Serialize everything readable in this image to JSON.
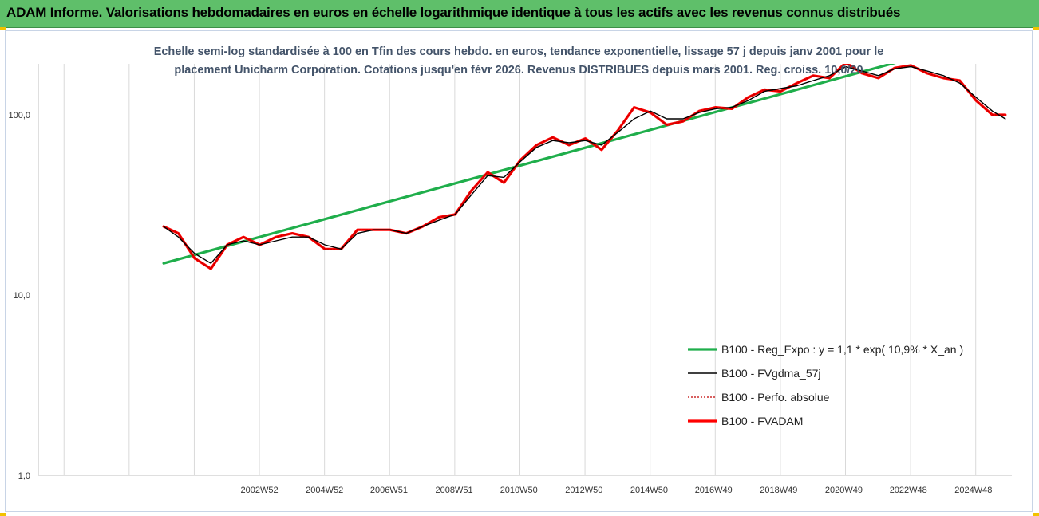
{
  "header": {
    "title": "ADAM Informe. Valorisations hebdomadaires en euros en échelle logarithmique identique à tous les actifs avec les revenus connus distribués"
  },
  "chart_data": {
    "type": "line",
    "title_line1": "Echelle semi-log standardisée à 100 en Tfin des cours hebdo. en euros, tendance exponentielle, lissage 57 j depuis janv 2001 pour le",
    "title_line2": "placement Unicharm Corporation. Cotations jusqu'en févr 2026. Revenus DISTRIBUES depuis mars 2001. Reg. croiss. 10,0/20",
    "y_scale": "log",
    "ylim": [
      1,
      200
    ],
    "y_ticks": [
      {
        "value": 1,
        "label": "1,0"
      },
      {
        "value": 10,
        "label": "10,0"
      },
      {
        "value": 100,
        "label": "100,0"
      }
    ],
    "x_range": [
      1996.2,
      2026.1
    ],
    "x_ticks": [
      {
        "value": 2002.99,
        "label": "2002W52"
      },
      {
        "value": 2004.99,
        "label": "2004W52"
      },
      {
        "value": 2006.97,
        "label": "2006W51"
      },
      {
        "value": 2008.97,
        "label": "2008W51"
      },
      {
        "value": 2010.96,
        "label": "2010W50"
      },
      {
        "value": 2012.96,
        "label": "2012W50"
      },
      {
        "value": 2014.96,
        "label": "2014W50"
      },
      {
        "value": 2016.94,
        "label": "2016W49"
      },
      {
        "value": 2018.94,
        "label": "2018W49"
      },
      {
        "value": 2020.94,
        "label": "2020W49"
      },
      {
        "value": 2022.92,
        "label": "2022W48"
      },
      {
        "value": 2024.92,
        "label": "2024W48"
      }
    ],
    "legend_position": "right",
    "series": [
      {
        "name": "B100 - Reg_Expo : y = 1,1 * exp( 10,9% *  X_an )",
        "color": "#1fae4b",
        "style": "solid-thick",
        "x": [
          2000.05,
          2022.75
        ],
        "y": [
          15.0,
          200.0
        ]
      },
      {
        "name": "B100 - FVgdma_57j",
        "color": "#000000",
        "style": "solid-thin",
        "x": [
          2000.05,
          2000.5,
          2001.0,
          2001.5,
          2002.0,
          2002.5,
          2003.0,
          2003.5,
          2004.0,
          2004.5,
          2005.0,
          2005.5,
          2006.0,
          2006.5,
          2007.0,
          2007.5,
          2008.0,
          2008.5,
          2009.0,
          2009.5,
          2010.0,
          2010.5,
          2011.0,
          2011.5,
          2012.0,
          2012.5,
          2013.0,
          2013.5,
          2014.0,
          2014.5,
          2015.0,
          2015.5,
          2016.0,
          2016.5,
          2017.0,
          2017.5,
          2018.0,
          2018.5,
          2019.0,
          2019.5,
          2020.0,
          2020.5,
          2021.0,
          2021.5,
          2022.0,
          2022.5,
          2023.0,
          2023.5,
          2024.0,
          2024.5,
          2025.0,
          2025.5,
          2025.9
        ],
        "y": [
          24,
          21,
          17,
          15,
          19,
          20,
          19,
          20,
          21,
          21,
          19,
          18,
          22,
          23,
          23,
          22,
          24,
          26,
          28,
          36,
          46,
          45,
          55,
          66,
          72,
          70,
          72,
          68,
          80,
          95,
          105,
          95,
          95,
          103,
          108,
          110,
          120,
          135,
          140,
          145,
          155,
          165,
          185,
          175,
          165,
          180,
          185,
          175,
          165,
          150,
          125,
          105,
          95
        ]
      },
      {
        "name": "B100 - Perfo. absolue",
        "color": "#c00000",
        "style": "dotted",
        "x": [
          2000.05,
          2000.5,
          2001.0,
          2001.5,
          2002.0,
          2002.5,
          2003.0,
          2003.5,
          2004.0,
          2004.5,
          2005.0,
          2005.5,
          2006.0,
          2006.5,
          2007.0,
          2007.5,
          2008.0,
          2008.5,
          2009.0,
          2009.5,
          2010.0,
          2010.5,
          2011.0,
          2011.5,
          2012.0,
          2012.5,
          2013.0,
          2013.5,
          2014.0,
          2014.5,
          2015.0,
          2015.5,
          2016.0,
          2016.5,
          2017.0,
          2017.5,
          2018.0,
          2018.5,
          2019.0,
          2019.5,
          2020.0,
          2020.5,
          2021.0,
          2021.5,
          2022.0,
          2022.5,
          2023.0,
          2023.5,
          2024.0,
          2024.5,
          2025.0,
          2025.5,
          2025.9
        ],
        "y": [
          24,
          22,
          16,
          14,
          19,
          21,
          19,
          21,
          22,
          21,
          18,
          18,
          23,
          23,
          23,
          22,
          24,
          27,
          28,
          38,
          48,
          42,
          56,
          68,
          75,
          68,
          74,
          64,
          82,
          110,
          103,
          88,
          92,
          105,
          110,
          108,
          125,
          138,
          135,
          150,
          165,
          160,
          195,
          170,
          160,
          182,
          188,
          170,
          160,
          155,
          120,
          100,
          100
        ]
      },
      {
        "name": "B100 - FVADAM",
        "color": "#ff0000",
        "style": "solid-thick",
        "x": [
          2000.05,
          2000.5,
          2001.0,
          2001.5,
          2002.0,
          2002.5,
          2003.0,
          2003.5,
          2004.0,
          2004.5,
          2005.0,
          2005.5,
          2006.0,
          2006.5,
          2007.0,
          2007.5,
          2008.0,
          2008.5,
          2009.0,
          2009.5,
          2010.0,
          2010.5,
          2011.0,
          2011.5,
          2012.0,
          2012.5,
          2013.0,
          2013.5,
          2014.0,
          2014.5,
          2015.0,
          2015.5,
          2016.0,
          2016.5,
          2017.0,
          2017.5,
          2018.0,
          2018.5,
          2019.0,
          2019.5,
          2020.0,
          2020.5,
          2021.0,
          2021.5,
          2022.0,
          2022.5,
          2023.0,
          2023.5,
          2024.0,
          2024.5,
          2025.0,
          2025.5,
          2025.9
        ],
        "y": [
          24,
          22,
          16,
          14,
          19,
          21,
          19,
          21,
          22,
          21,
          18,
          18,
          23,
          23,
          23,
          22,
          24,
          27,
          28,
          38,
          48,
          42,
          56,
          68,
          75,
          68,
          74,
          64,
          82,
          110,
          103,
          88,
          92,
          105,
          110,
          108,
          125,
          138,
          135,
          150,
          165,
          160,
          195,
          170,
          160,
          182,
          188,
          170,
          160,
          155,
          120,
          100,
          100
        ]
      }
    ]
  },
  "colors": {
    "banner": "#5fbf6a",
    "subtitle": "#44546a",
    "regression": "#1fae4b",
    "price": "#ff0000",
    "smoothed": "#000000"
  }
}
